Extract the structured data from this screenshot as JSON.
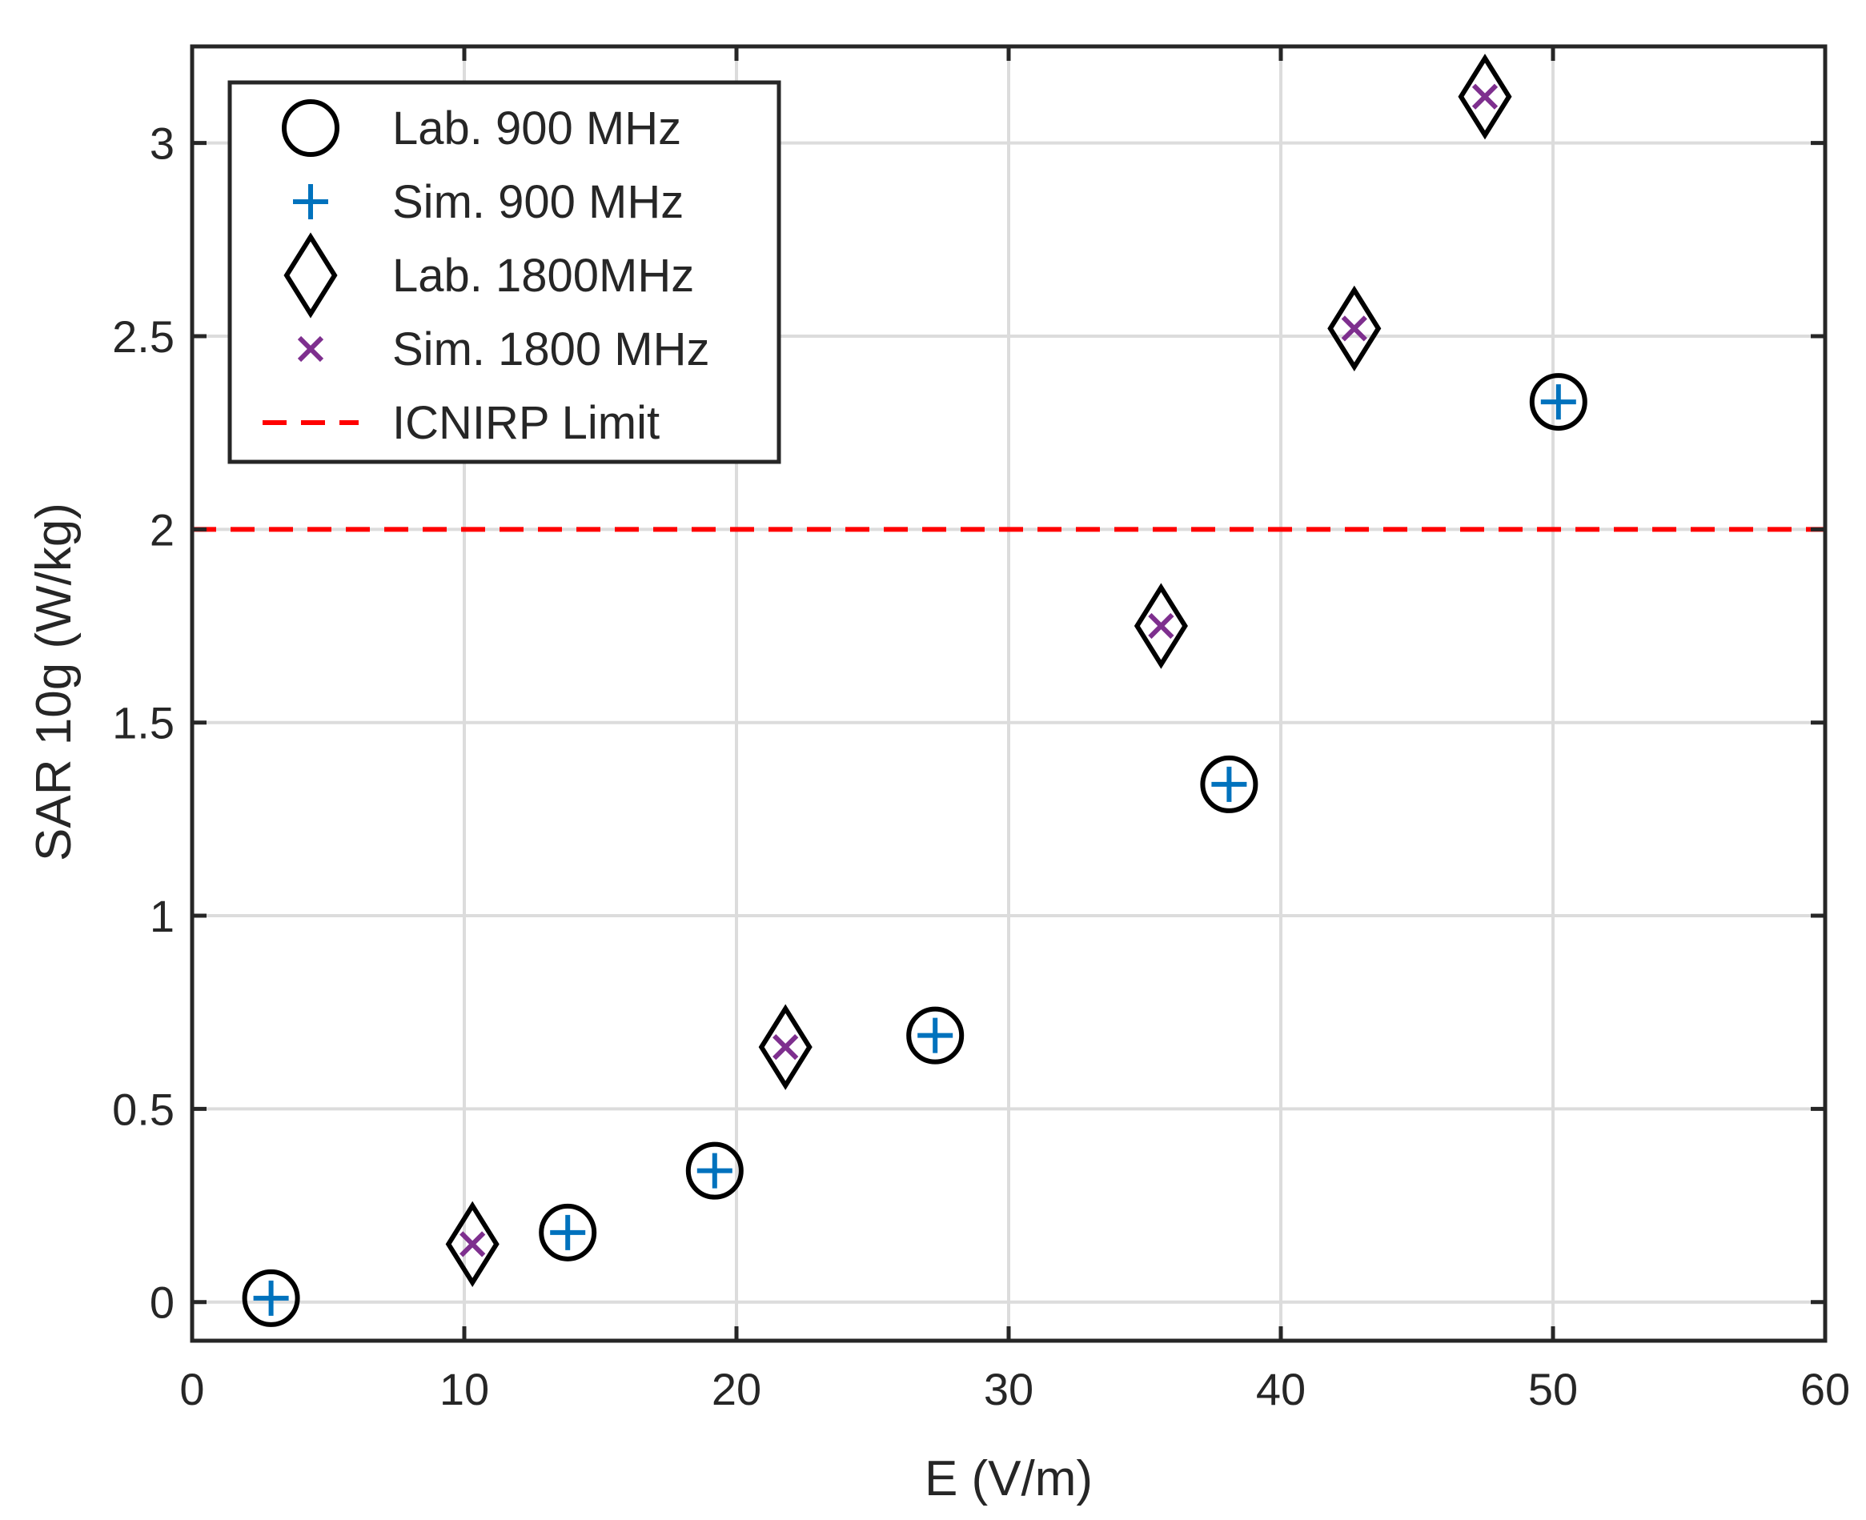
{
  "chart_data": {
    "type": "scatter",
    "title": "",
    "xlabel": "E (V/m)",
    "ylabel": "SAR 10g (W/kg)",
    "xlim": [
      0,
      60
    ],
    "ylim": [
      -0.1,
      3.25
    ],
    "xticks": [
      0,
      10,
      20,
      30,
      40,
      50,
      60
    ],
    "xtick_labels": [
      "0",
      "10",
      "20",
      "30",
      "40",
      "50",
      "60"
    ],
    "yticks": [
      0,
      0.5,
      1,
      1.5,
      2,
      2.5,
      3
    ],
    "ytick_labels": [
      "0",
      "0.5",
      "1",
      "1.5",
      "2",
      "2.5",
      "3"
    ],
    "grid": true,
    "legend_position": "top-left",
    "series": [
      {
        "name": "Lab. 900 MHz",
        "marker": "circle",
        "color": "#000000",
        "x": [
          2.9,
          13.8,
          19.2,
          27.3,
          38.1,
          50.2
        ],
        "y": [
          0.01,
          0.18,
          0.34,
          0.69,
          1.34,
          2.33
        ]
      },
      {
        "name": "Sim. 900 MHz",
        "marker": "plus",
        "color": "#0072BD",
        "x": [
          2.9,
          13.8,
          19.2,
          27.3,
          38.1,
          50.2
        ],
        "y": [
          0.01,
          0.18,
          0.34,
          0.69,
          1.34,
          2.33
        ]
      },
      {
        "name": "Lab. 1800MHz",
        "marker": "diamond",
        "color": "#000000",
        "x": [
          10.3,
          21.8,
          35.6,
          42.7,
          47.5
        ],
        "y": [
          0.15,
          0.66,
          1.75,
          2.52,
          3.12
        ]
      },
      {
        "name": "Sim. 1800 MHz",
        "marker": "x",
        "color": "#7E2F8E",
        "x": [
          10.3,
          21.8,
          35.6,
          42.7,
          47.5
        ],
        "y": [
          0.15,
          0.66,
          1.75,
          2.52,
          3.12
        ]
      },
      {
        "name": "ICNIRP Limit",
        "marker": "dashed-line",
        "color": "#FF0000",
        "y": [
          2,
          2
        ],
        "x": [
          0,
          60
        ]
      }
    ]
  }
}
